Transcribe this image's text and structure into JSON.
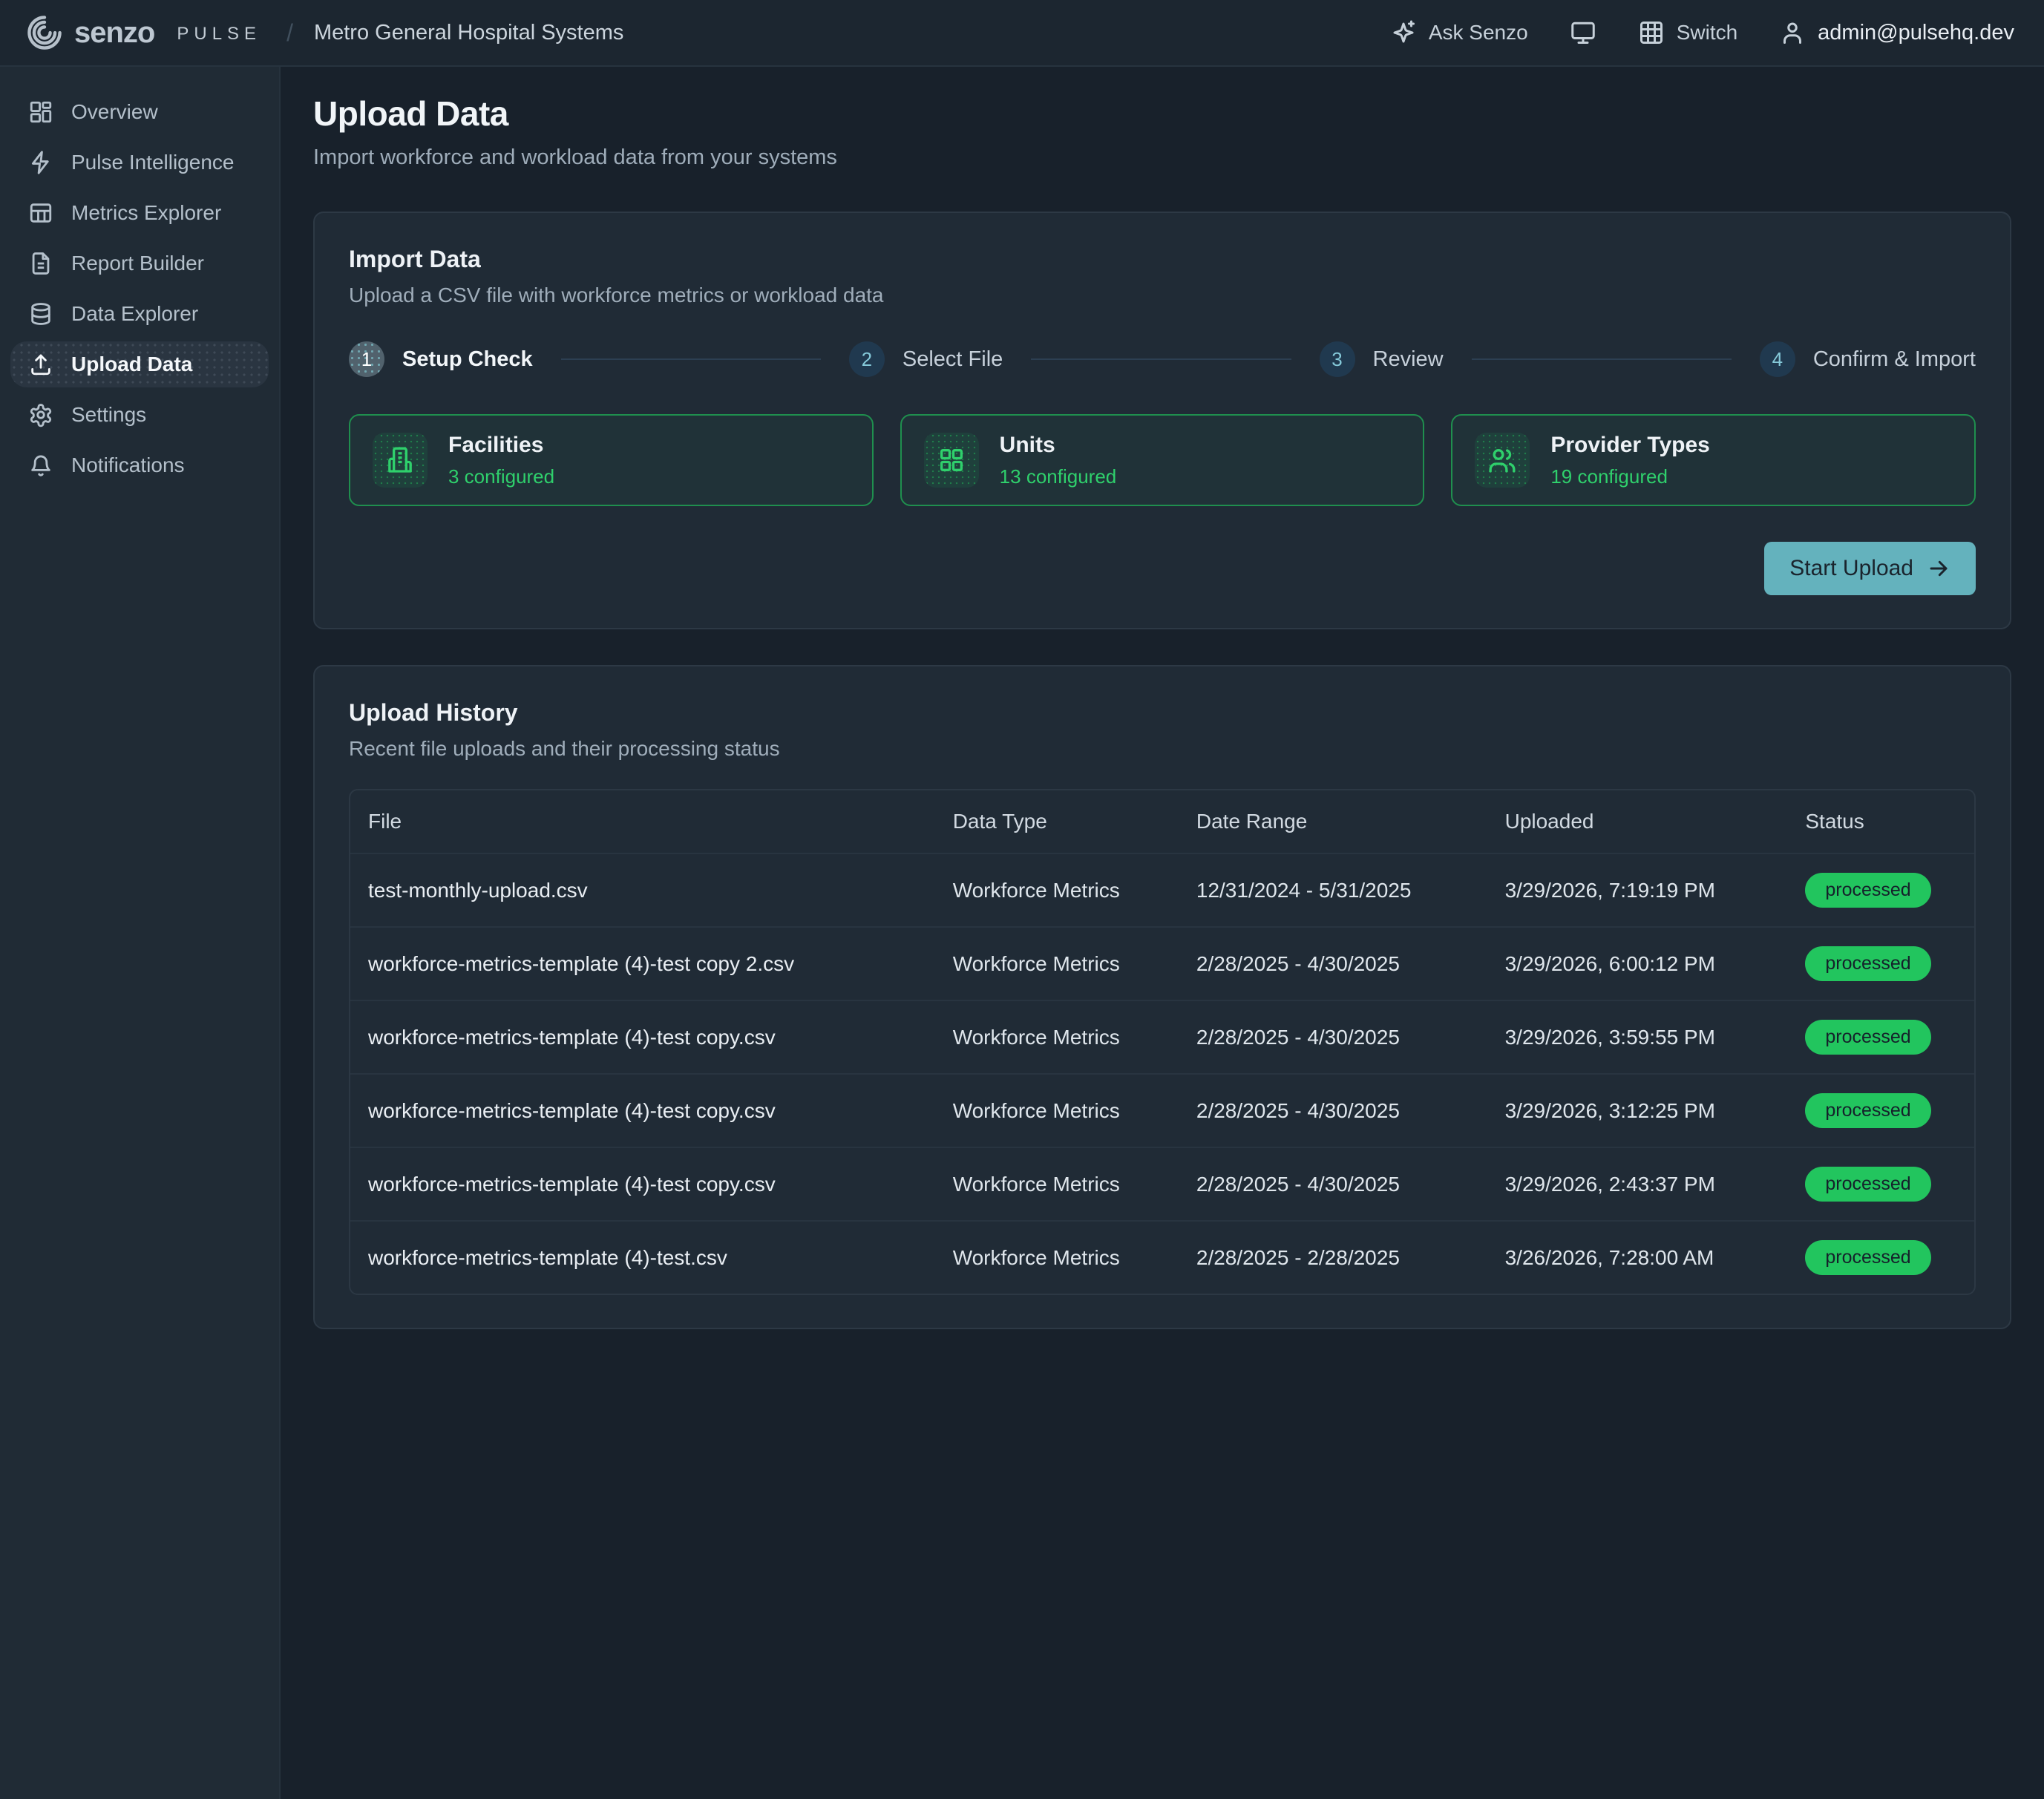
{
  "header": {
    "brand": "senzo",
    "product": "PULSE",
    "breadcrumb": "Metro General Hospital Systems",
    "ask_label": "Ask Senzo",
    "ask_icon": "sparkles-icon",
    "display_icon": "monitor-icon",
    "switch_label": "Switch",
    "switch_icon": "grid-3x3-icon",
    "user_icon": "user-icon",
    "user_email": "admin@pulsehq.dev"
  },
  "sidebar": {
    "items": [
      {
        "label": "Overview",
        "icon": "dashboard-icon",
        "active": false
      },
      {
        "label": "Pulse Intelligence",
        "icon": "zap-icon",
        "active": false
      },
      {
        "label": "Metrics Explorer",
        "icon": "table-icon",
        "active": false
      },
      {
        "label": "Report Builder",
        "icon": "file-text-icon",
        "active": false
      },
      {
        "label": "Data Explorer",
        "icon": "database-icon",
        "active": false
      },
      {
        "label": "Upload Data",
        "icon": "upload-icon",
        "active": true
      },
      {
        "label": "Settings",
        "icon": "gear-icon",
        "active": false
      },
      {
        "label": "Notifications",
        "icon": "bell-icon",
        "active": false
      }
    ]
  },
  "page": {
    "title": "Upload Data",
    "subtitle": "Import workforce and workload data from your systems"
  },
  "import_card": {
    "title": "Import Data",
    "subtitle": "Upload a CSV file with workforce metrics or workload data",
    "steps": [
      {
        "number": "1",
        "label": "Setup Check",
        "active": true
      },
      {
        "number": "2",
        "label": "Select File",
        "active": false
      },
      {
        "number": "3",
        "label": "Review",
        "active": false
      },
      {
        "number": "4",
        "label": "Confirm & Import",
        "active": false
      }
    ],
    "setup_boxes": [
      {
        "title": "Facilities",
        "status": "3 configured",
        "icon": "building-icon"
      },
      {
        "title": "Units",
        "status": "13 configured",
        "icon": "grid-2x2-icon"
      },
      {
        "title": "Provider Types",
        "status": "19 configured",
        "icon": "users-icon"
      }
    ],
    "start_button_label": "Start Upload"
  },
  "history_card": {
    "title": "Upload History",
    "subtitle": "Recent file uploads and their processing status",
    "columns": [
      "File",
      "Data Type",
      "Date Range",
      "Uploaded",
      "Status"
    ],
    "rows": [
      {
        "file": "test-monthly-upload.csv",
        "data_type": "Workforce Metrics",
        "date_range": "12/31/2024 - 5/31/2025",
        "uploaded": "3/29/2026, 7:19:19 PM",
        "status": "processed"
      },
      {
        "file": "workforce-metrics-template (4)-test copy 2.csv",
        "data_type": "Workforce Metrics",
        "date_range": "2/28/2025 - 4/30/2025",
        "uploaded": "3/29/2026, 6:00:12 PM",
        "status": "processed"
      },
      {
        "file": "workforce-metrics-template (4)-test copy.csv",
        "data_type": "Workforce Metrics",
        "date_range": "2/28/2025 - 4/30/2025",
        "uploaded": "3/29/2026, 3:59:55 PM",
        "status": "processed"
      },
      {
        "file": "workforce-metrics-template (4)-test copy.csv",
        "data_type": "Workforce Metrics",
        "date_range": "2/28/2025 - 4/30/2025",
        "uploaded": "3/29/2026, 3:12:25 PM",
        "status": "processed"
      },
      {
        "file": "workforce-metrics-template (4)-test copy.csv",
        "data_type": "Workforce Metrics",
        "date_range": "2/28/2025 - 4/30/2025",
        "uploaded": "3/29/2026, 2:43:37 PM",
        "status": "processed"
      },
      {
        "file": "workforce-metrics-template (4)-test.csv",
        "data_type": "Workforce Metrics",
        "date_range": "2/28/2025 - 2/28/2025",
        "uploaded": "3/26/2026, 7:28:00 AM",
        "status": "processed"
      }
    ]
  },
  "colors": {
    "accent_green": "#22c55e",
    "accent_teal": "#64b2bd",
    "status_badge_bg": "#22c55e",
    "card_bg": "#202b36",
    "page_bg": "#18212b"
  }
}
